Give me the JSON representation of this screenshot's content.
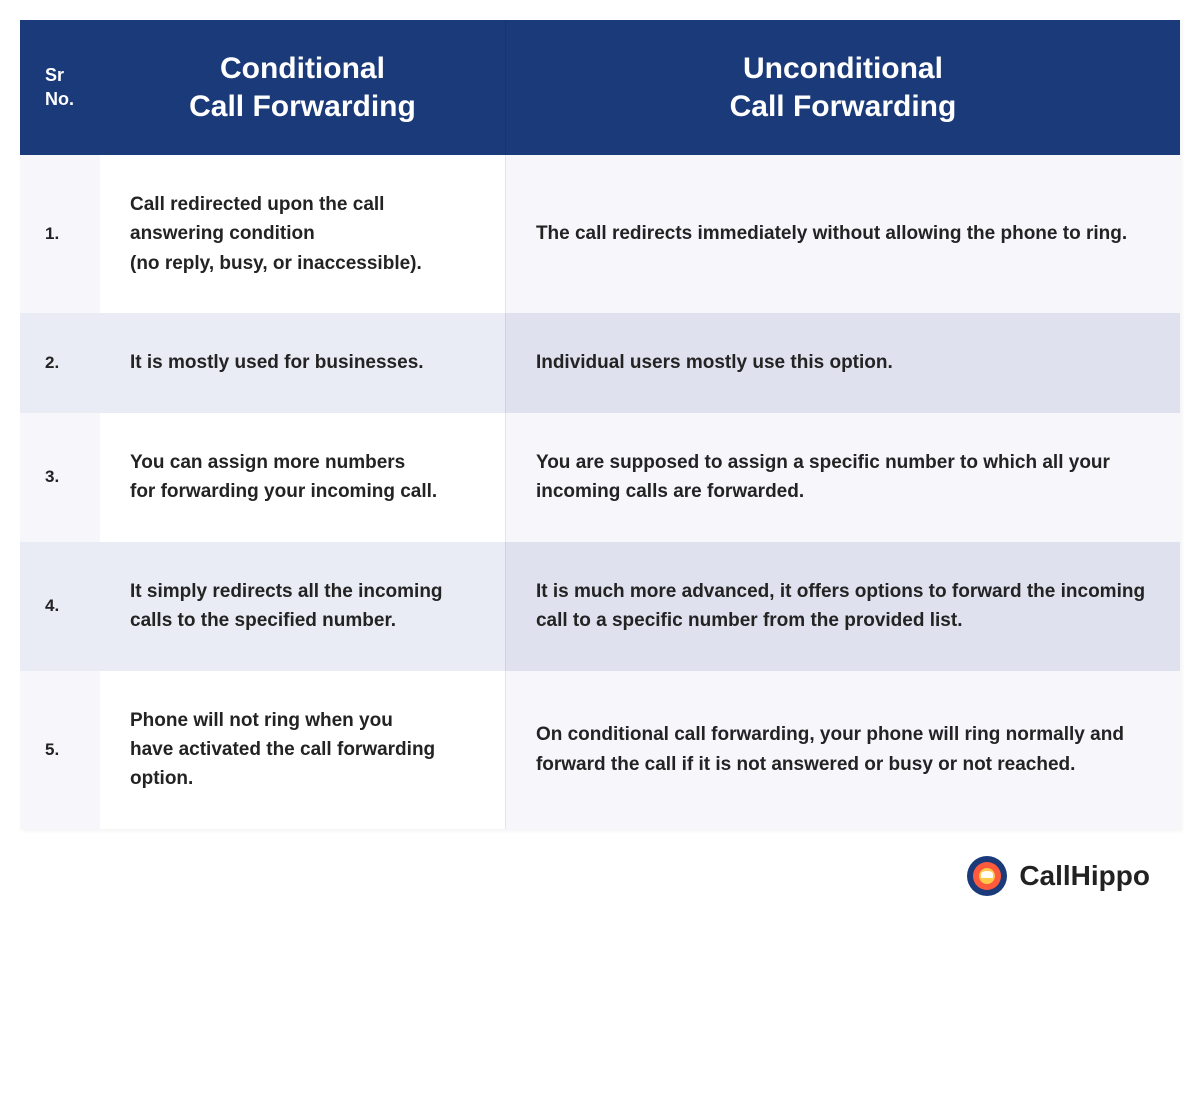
{
  "table": {
    "type": "table",
    "header_bg": "#1a3a7a",
    "header_fg": "#ffffff",
    "row_light_bg": "#f6f6fb",
    "row_dark_bg": "#e9ebf5",
    "left_light_bg": "#ffffff",
    "right_light_bg": "#f6f6fb",
    "right_dark_bg": "#dfe1ee",
    "text_color": "#232323",
    "title_fontsize": 30,
    "body_fontsize": 19,
    "sr_header": "Sr\nNo.",
    "columns": {
      "left": "Conditional\nCall Forwarding",
      "right": "Unconditional\nCall Forwarding"
    },
    "rows": [
      {
        "sr": "1.",
        "left": "Call redirected upon the call answering condition\n(no reply, busy, or inaccessible).",
        "right": "The call redirects immediately without allowing the phone to ring."
      },
      {
        "sr": "2.",
        "left": "It is mostly used for businesses.",
        "right": "Individual users mostly use this option."
      },
      {
        "sr": "3.",
        "left": "You can assign more numbers\nfor forwarding your incoming call.",
        "right": "You are supposed to assign a specific number to which all your incoming calls are forwarded."
      },
      {
        "sr": "4.",
        "left": "It simply redirects all the incoming calls to the specified number.",
        "right": "It is much more advanced, it offers options to forward the incoming call to a specific number from the provided list."
      },
      {
        "sr": "5.",
        "left": "Phone will not ring when you\nhave activated the call forwarding option.",
        "right": "On conditional call forwarding, your phone will ring normally and forward the call if it is not answered or busy or not reached."
      }
    ]
  },
  "brand": {
    "name": "CallHippo",
    "logo_colors": {
      "outer": "#1a3a7a",
      "mid": "#ff5a3c",
      "inner": "#ffc94a"
    }
  }
}
